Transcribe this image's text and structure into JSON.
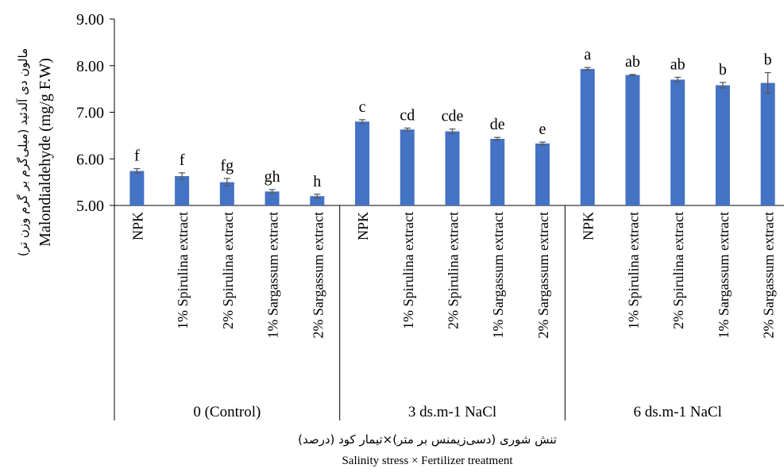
{
  "chart_data": {
    "type": "bar",
    "ylabel_fa": "مالون دی آلدئید (میلی‌گرم بر گرم وزن تر)",
    "ylabel": "Malondialdehyde (mg/g F.W)",
    "xlabel_fa": "تنش شوری (دسی‌زیمنس بر متر)×تیمار کود (درصد)",
    "xlabel": "Salinity stress × Fertilizer treatment",
    "ylim": [
      5.0,
      9.0
    ],
    "yticks": [
      "5.00",
      "6.00",
      "7.00",
      "8.00",
      "9.00"
    ],
    "grid": false,
    "legend": "none",
    "bar_color": "#4472c4",
    "groups": [
      {
        "label": "0 (Control)",
        "categories": [
          "NPK",
          "1% Spirulina extract",
          "2% Spirulina extract",
          "1% Sargassum extract",
          "2% Sargassum extract"
        ],
        "values": [
          5.74,
          5.63,
          5.5,
          5.3,
          5.2
        ],
        "errors": [
          0.05,
          0.07,
          0.08,
          0.04,
          0.04
        ],
        "letters": [
          "f",
          "f",
          "fg",
          "gh",
          "h"
        ]
      },
      {
        "label": "3 ds.m-1 NaCl",
        "categories": [
          "NPK",
          "1% Spirulina extract",
          "2% Spirulina extract",
          "1% Sargassum extract",
          "2% Sargassum extract"
        ],
        "values": [
          6.8,
          6.63,
          6.59,
          6.43,
          6.33
        ],
        "errors": [
          0.04,
          0.03,
          0.05,
          0.03,
          0.03
        ],
        "letters": [
          "c",
          "cd",
          "cde",
          "de",
          "e"
        ]
      },
      {
        "label": "6 ds.m-1 NaCl",
        "categories": [
          "NPK",
          "1% Spirulina extract",
          "2% Spirulina extract",
          "1% Sargassum extract",
          "2% Sargassum extract"
        ],
        "values": [
          7.93,
          7.8,
          7.7,
          7.58,
          7.63
        ],
        "errors": [
          0.03,
          0.01,
          0.05,
          0.06,
          0.22
        ],
        "letters": [
          "a",
          "ab",
          "ab",
          "b",
          "b"
        ]
      }
    ]
  }
}
